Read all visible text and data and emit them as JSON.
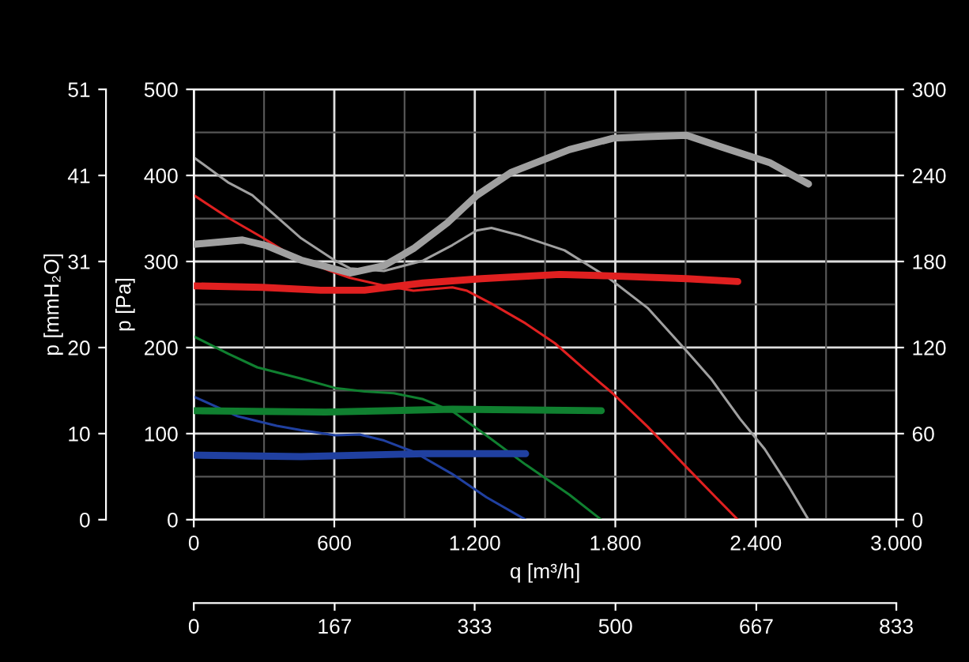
{
  "chart_data": {
    "type": "line",
    "xlabel": "q [m³/h]",
    "ylabel": "p [Pa]",
    "y3label": "p [mmH₂O]",
    "xlim": [
      0,
      3000
    ],
    "xticks": [
      0,
      {
        "value": 600,
        "label": "600"
      },
      {
        "value": 1200,
        "label": "1.200"
      },
      {
        "value": 1800,
        "label": "1.800"
      },
      {
        "value": 2400,
        "label": "2.400"
      },
      {
        "value": 3000,
        "label": "3.000"
      }
    ],
    "x2lim": [
      0,
      833
    ],
    "x2ticks": [
      0,
      167,
      333,
      500,
      667,
      833
    ],
    "ylim": [
      0,
      500
    ],
    "yticks": [
      0,
      100,
      200,
      300,
      400,
      500
    ],
    "y2lim": [
      0,
      300
    ],
    "y2ticks": [
      0,
      60,
      120,
      180,
      240,
      300
    ],
    "y3lim": [
      0,
      51
    ],
    "y3ticks": [
      0,
      {
        "value": 10.2,
        "label": "10"
      },
      {
        "value": 20.4,
        "label": "20"
      },
      {
        "value": 30.6,
        "label": "31"
      },
      {
        "value": 40.8,
        "label": "41"
      },
      51
    ],
    "grid": true,
    "marker": "none",
    "line_style": "solid",
    "series": [
      {
        "color": "#a0a0a0",
        "x": [
          0,
          146,
          250,
          458,
          604,
          667,
          812,
          979,
          1104,
          1208,
          1271,
          1396,
          1583,
          1771,
          1938,
          2104,
          2208,
          2333,
          2438,
          2542,
          2625
        ],
        "values": [
          421,
          392,
          377,
          327,
          301,
          292,
          289,
          301,
          319,
          336,
          339,
          330,
          313,
          281,
          246,
          196,
          164,
          117,
          82,
          38,
          0
        ]
      },
      {
        "color": "#a0a0a0",
        "axis": "y2",
        "x": [
          0,
          208,
          312,
          458,
          667,
          812,
          938,
          1083,
          1208,
          1354,
          1604,
          1792,
          1938,
          2104,
          2250,
          2458,
          2625
        ],
        "values": [
          192,
          195,
          191,
          181,
          172,
          177,
          189,
          207,
          226,
          242,
          258,
          266,
          267,
          268,
          260,
          249,
          234
        ]
      },
      {
        "color": "#e02020",
        "x": [
          0,
          146,
          292,
          417,
          583,
          667,
          812,
          938,
          1104,
          1167,
          1271,
          1417,
          1542,
          1667,
          1792,
          1938,
          2104,
          2229,
          2323
        ],
        "values": [
          377,
          351,
          328,
          307,
          289,
          281,
          272,
          266,
          270,
          266,
          251,
          228,
          205,
          175,
          146,
          108,
          61,
          26,
          0
        ]
      },
      {
        "color": "#e02020",
        "axis": "y2",
        "x": [
          0,
          292,
          542,
          729,
          979,
          1229,
          1562,
          1771,
          2104,
          2323
        ],
        "values": [
          163,
          162,
          160,
          160,
          165,
          168,
          171,
          170,
          168,
          166
        ]
      },
      {
        "color": "#108030",
        "x": [
          0,
          146,
          271,
          458,
          604,
          729,
          854,
          979,
          1104,
          1229,
          1417,
          1604,
          1740
        ],
        "values": [
          213,
          193,
          177,
          164,
          153,
          149,
          147,
          140,
          126,
          102,
          64,
          29,
          0
        ]
      },
      {
        "color": "#108030",
        "axis": "y2",
        "x": [
          0,
          562,
          1104,
          1740
        ],
        "values": [
          76,
          75,
          77,
          76
        ]
      },
      {
        "color": "#2040a0",
        "x": [
          0,
          188,
          354,
          458,
          604,
          708,
          812,
          938,
          1104,
          1250,
          1417
        ],
        "values": [
          143,
          120,
          109,
          104,
          98,
          99,
          92,
          79,
          53,
          26,
          0
        ]
      },
      {
        "color": "#2040a0",
        "axis": "y2",
        "x": [
          0,
          458,
          979,
          1417
        ],
        "values": [
          45,
          44,
          46,
          46
        ]
      }
    ]
  }
}
